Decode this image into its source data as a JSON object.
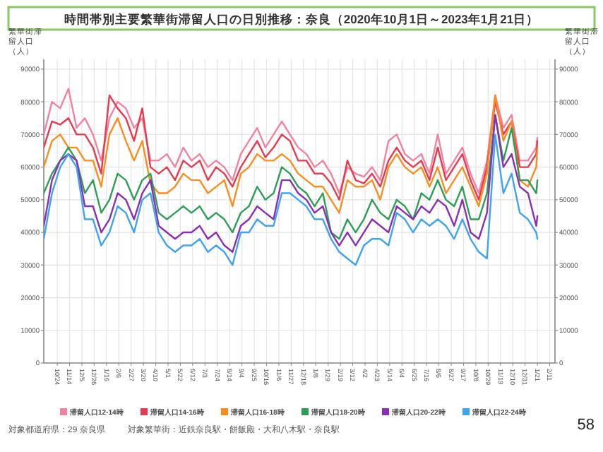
{
  "chart_data": {
    "type": "line",
    "title": "時間帯別主要繁華街滞留人口の日別推移：奈良（2020年10月1日～2023年1月21日）",
    "ylabel": "繁華街滞留人口（人）",
    "y2label": "繁華街滞留人口（人）",
    "x": [
      "2020-10-01",
      "2020-10-15",
      "2020-10-29",
      "2020-11-12",
      "2020-11-26",
      "2020-12-10",
      "2020-12-24",
      "2021-01-07",
      "2021-01-21",
      "2021-02-04",
      "2021-02-18",
      "2021-03-04",
      "2021-03-18",
      "2021-04-01",
      "2021-04-15",
      "2021-04-29",
      "2021-05-13",
      "2021-05-27",
      "2021-06-10",
      "2021-06-24",
      "2021-07-08",
      "2021-07-22",
      "2021-08-05",
      "2021-08-19",
      "2021-09-02",
      "2021-09-16",
      "2021-09-30",
      "2021-10-14",
      "2021-10-28",
      "2021-11-11",
      "2021-11-25",
      "2021-12-09",
      "2021-12-23",
      "2022-01-06",
      "2022-01-20",
      "2022-02-03",
      "2022-02-17",
      "2022-03-03",
      "2022-03-17",
      "2022-03-31",
      "2022-04-14",
      "2022-04-28",
      "2022-05-12",
      "2022-05-26",
      "2022-06-09",
      "2022-06-23",
      "2022-07-07",
      "2022-07-21",
      "2022-08-04",
      "2022-08-18",
      "2022-09-01",
      "2022-09-15",
      "2022-09-29",
      "2022-10-13",
      "2022-10-27",
      "2022-11-10",
      "2022-11-24",
      "2022-12-08",
      "2022-12-22",
      "2023-01-05",
      "2023-01-19",
      "2023-01-21"
    ],
    "series": [
      {
        "name": "滞留人口12-14時",
        "color": "#f4829f",
        "values": [
          70000,
          80000,
          78000,
          84000,
          72000,
          75000,
          70000,
          62000,
          75000,
          80000,
          78000,
          72000,
          75000,
          62000,
          62000,
          64000,
          60000,
          66000,
          62000,
          64000,
          60000,
          62000,
          60000,
          56000,
          64000,
          68000,
          72000,
          66000,
          70000,
          74000,
          70000,
          66000,
          64000,
          60000,
          62000,
          58000,
          52000,
          60000,
          58000,
          57000,
          60000,
          56000,
          68000,
          70000,
          64000,
          62000,
          64000,
          58000,
          70000,
          58000,
          62000,
          66000,
          58000,
          52000,
          62000,
          82000,
          72000,
          76000,
          62000,
          62000,
          66000,
          69000
        ]
      },
      {
        "name": "滞留人口14-16時",
        "color": "#e8394f",
        "values": [
          66000,
          74000,
          73000,
          75000,
          70000,
          70000,
          66000,
          58000,
          82000,
          78000,
          75000,
          68000,
          78000,
          60000,
          58000,
          60000,
          56000,
          62000,
          60000,
          62000,
          56000,
          60000,
          58000,
          54000,
          60000,
          64000,
          68000,
          63000,
          66000,
          70000,
          68000,
          62000,
          62000,
          58000,
          58000,
          55000,
          50000,
          62000,
          56000,
          55000,
          58000,
          54000,
          62000,
          66000,
          62000,
          60000,
          62000,
          56000,
          66000,
          56000,
          60000,
          64000,
          56000,
          50000,
          60000,
          80000,
          70000,
          74000,
          60000,
          60000,
          64000,
          68000
        ]
      },
      {
        "name": "滞留人口16-18時",
        "color": "#fb8c1e",
        "values": [
          60000,
          68000,
          70000,
          66000,
          66000,
          62000,
          62000,
          54000,
          70000,
          75000,
          68000,
          62000,
          68000,
          55000,
          52000,
          52000,
          54000,
          58000,
          56000,
          56000,
          52000,
          54000,
          56000,
          48000,
          58000,
          60000,
          64000,
          62000,
          62000,
          64000,
          62000,
          58000,
          56000,
          54000,
          54000,
          50000,
          46000,
          56000,
          54000,
          54000,
          56000,
          50000,
          60000,
          64000,
          60000,
          58000,
          60000,
          54000,
          60000,
          52000,
          56000,
          60000,
          54000,
          48000,
          58000,
          82000,
          68000,
          74000,
          56000,
          54000,
          60000,
          66000
        ]
      },
      {
        "name": "滞留人口18-20時",
        "color": "#2e9e57",
        "values": [
          52000,
          58000,
          62000,
          66000,
          62000,
          52000,
          56000,
          46000,
          50000,
          58000,
          56000,
          50000,
          56000,
          58000,
          46000,
          44000,
          46000,
          48000,
          46000,
          48000,
          44000,
          46000,
          44000,
          40000,
          46000,
          48000,
          54000,
          50000,
          52000,
          60000,
          58000,
          54000,
          52000,
          48000,
          52000,
          40000,
          38000,
          44000,
          40000,
          44000,
          50000,
          46000,
          44000,
          50000,
          48000,
          44000,
          52000,
          50000,
          56000,
          50000,
          48000,
          54000,
          44000,
          44000,
          52000,
          76000,
          62000,
          72000,
          56000,
          56000,
          52000,
          56000
        ]
      },
      {
        "name": "滞留人口20-22時",
        "color": "#8a2eb5",
        "values": [
          42000,
          56000,
          62000,
          64000,
          62000,
          48000,
          48000,
          40000,
          44000,
          52000,
          50000,
          44000,
          52000,
          56000,
          42000,
          40000,
          38000,
          40000,
          40000,
          42000,
          38000,
          40000,
          36000,
          34000,
          42000,
          44000,
          48000,
          46000,
          44000,
          56000,
          56000,
          52000,
          50000,
          46000,
          48000,
          40000,
          36000,
          40000,
          36000,
          40000,
          44000,
          42000,
          40000,
          48000,
          46000,
          44000,
          48000,
          46000,
          50000,
          48000,
          42000,
          50000,
          40000,
          38000,
          46000,
          76000,
          60000,
          64000,
          54000,
          52000,
          42000,
          45000
        ]
      },
      {
        "name": "滞留人口22-24時",
        "color": "#3fa4f0",
        "values": [
          38000,
          52000,
          60000,
          64000,
          60000,
          44000,
          44000,
          36000,
          40000,
          48000,
          46000,
          40000,
          50000,
          52000,
          40000,
          36000,
          34000,
          36000,
          36000,
          38000,
          34000,
          36000,
          34000,
          30000,
          40000,
          40000,
          44000,
          42000,
          42000,
          52000,
          52000,
          50000,
          48000,
          44000,
          44000,
          38000,
          34000,
          32000,
          30000,
          36000,
          38000,
          38000,
          36000,
          46000,
          44000,
          40000,
          44000,
          42000,
          44000,
          42000,
          38000,
          44000,
          38000,
          34000,
          32000,
          70000,
          52000,
          58000,
          46000,
          44000,
          40000,
          38000
        ]
      }
    ],
    "xlim": [
      "2020-10-01",
      "2023-02-20"
    ],
    "xticks": [
      {
        "value": "2020-10-24",
        "label": "10/24"
      },
      {
        "value": "2020-11-14",
        "label": "11/14"
      },
      {
        "value": "2020-12-05",
        "label": "12/5"
      },
      {
        "value": "2020-12-26",
        "label": "12/26"
      },
      {
        "value": "2021-01-16",
        "label": "1/16"
      },
      {
        "value": "2021-02-06",
        "label": "2/6"
      },
      {
        "value": "2021-02-27",
        "label": "2/27"
      },
      {
        "value": "2021-03-20",
        "label": "3/20"
      },
      {
        "value": "2021-04-10",
        "label": "4/10"
      },
      {
        "value": "2021-05-01",
        "label": "5/1"
      },
      {
        "value": "2021-05-22",
        "label": "5/22"
      },
      {
        "value": "2021-06-12",
        "label": "6/12"
      },
      {
        "value": "2021-07-03",
        "label": "7/3"
      },
      {
        "value": "2021-07-24",
        "label": "7/24"
      },
      {
        "value": "2021-08-14",
        "label": "8/14"
      },
      {
        "value": "2021-09-04",
        "label": "9/4"
      },
      {
        "value": "2021-09-25",
        "label": "9/25"
      },
      {
        "value": "2021-10-16",
        "label": "10/16"
      },
      {
        "value": "2021-11-06",
        "label": "11/6"
      },
      {
        "value": "2021-11-27",
        "label": "11/27"
      },
      {
        "value": "2021-12-18",
        "label": "12/18"
      },
      {
        "value": "2022-01-08",
        "label": "1/8"
      },
      {
        "value": "2022-01-29",
        "label": "1/29"
      },
      {
        "value": "2022-02-19",
        "label": "2/19"
      },
      {
        "value": "2022-03-12",
        "label": "3/12"
      },
      {
        "value": "2022-04-02",
        "label": "4/2"
      },
      {
        "value": "2022-04-23",
        "label": "4/23"
      },
      {
        "value": "2022-05-14",
        "label": "5/14"
      },
      {
        "value": "2022-06-04",
        "label": "6/4"
      },
      {
        "value": "2022-06-25",
        "label": "6/25"
      },
      {
        "value": "2022-07-16",
        "label": "7/16"
      },
      {
        "value": "2022-08-06",
        "label": "8/6"
      },
      {
        "value": "2022-08-27",
        "label": "8/27"
      },
      {
        "value": "2022-09-17",
        "label": "9/17"
      },
      {
        "value": "2022-10-08",
        "label": "10/8"
      },
      {
        "value": "2022-10-29",
        "label": "10/29"
      },
      {
        "value": "2022-11-19",
        "label": "11/19"
      },
      {
        "value": "2022-12-10",
        "label": "12/10"
      },
      {
        "value": "2022-12-31",
        "label": "12/31"
      },
      {
        "value": "2023-01-21",
        "label": "1/21"
      },
      {
        "value": "2023-02-11",
        "label": "2/11"
      }
    ],
    "ylim": [
      0,
      93000
    ],
    "yticks": [
      0,
      10000,
      20000,
      30000,
      40000,
      50000,
      60000,
      70000,
      80000,
      90000
    ],
    "y2lim": [
      0,
      93000
    ],
    "y2ticks": [
      0,
      10000,
      20000,
      30000,
      40000,
      50000,
      60000,
      70000,
      80000,
      90000
    ],
    "grid": true,
    "legend": "bottom",
    "annotations": [
      "対象都道府県：29 奈良県",
      "対象繁華街：近鉄奈良駅・餅飯殿・大和八木駅・奈良駅",
      "58"
    ]
  }
}
